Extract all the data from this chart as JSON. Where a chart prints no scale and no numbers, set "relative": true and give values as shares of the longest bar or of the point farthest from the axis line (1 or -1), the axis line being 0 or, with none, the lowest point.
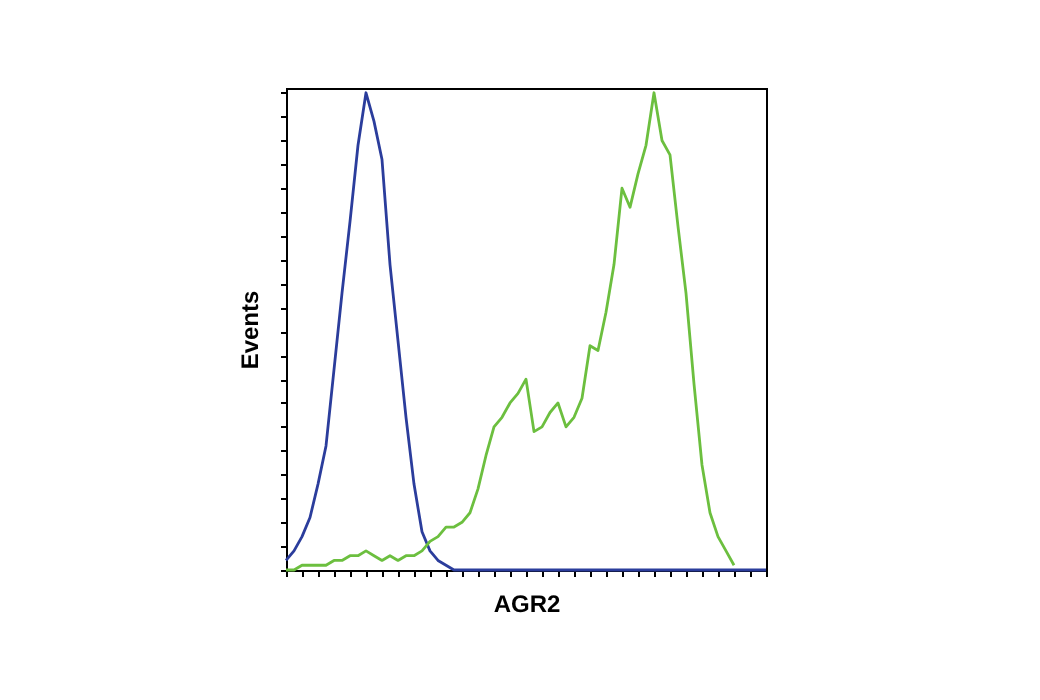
{
  "chart_data": {
    "type": "line",
    "relative": true,
    "xlabel": "AGR2",
    "ylabel": "Events",
    "grid": false,
    "legend": false,
    "tick_labels": false,
    "marker": "none",
    "line_style": "solid",
    "categories": [
      null,
      null,
      null,
      null,
      null,
      null,
      null,
      null,
      null,
      null,
      null,
      null,
      null,
      null,
      null,
      null,
      null,
      null,
      null,
      null,
      null,
      null,
      null,
      null,
      null,
      null,
      null,
      null,
      null,
      null,
      null,
      null,
      null,
      null,
      null,
      null,
      null,
      null,
      null,
      null,
      null,
      null,
      null,
      null,
      null,
      null,
      null,
      null,
      null,
      null,
      null,
      null,
      null,
      null,
      null,
      null,
      null,
      null,
      null,
      null,
      null
    ],
    "series": [
      {
        "color": "#2b3d9c",
        "values": [
          0.02,
          0.04,
          0.07,
          0.11,
          0.18,
          0.26,
          0.42,
          0.58,
          0.73,
          0.89,
          1.0,
          0.94,
          0.86,
          0.64,
          0.48,
          0.32,
          0.18,
          0.08,
          0.04,
          0.02,
          0.01,
          0,
          0,
          0,
          0,
          0,
          0,
          0,
          0,
          0,
          0,
          0,
          0,
          0,
          0,
          0,
          0,
          0,
          0,
          0,
          0,
          0,
          0,
          0,
          0,
          0,
          0,
          0,
          0,
          0,
          0,
          0,
          0,
          0,
          0,
          0,
          0,
          0,
          0,
          0,
          0
        ]
      },
      {
        "color": "#6cbf3f",
        "values": [
          0,
          0,
          0.01,
          0.01,
          0.01,
          0.01,
          0.02,
          0.02,
          0.03,
          0.03,
          0.04,
          0.03,
          0.02,
          0.03,
          0.02,
          0.03,
          0.03,
          0.04,
          0.06,
          0.07,
          0.09,
          0.09,
          0.1,
          0.12,
          0.17,
          0.24,
          0.3,
          0.32,
          0.35,
          0.37,
          0.4,
          0.29,
          0.3,
          0.33,
          0.35,
          0.3,
          0.32,
          0.36,
          0.47,
          0.46,
          0.54,
          0.64,
          0.8,
          0.76,
          0.83,
          0.89,
          1.0,
          0.9,
          0.87,
          0.72,
          0.58,
          0.39,
          0.22,
          0.12,
          0.07,
          0.04,
          0.01,
          null,
          null,
          null,
          null
        ]
      }
    ]
  }
}
